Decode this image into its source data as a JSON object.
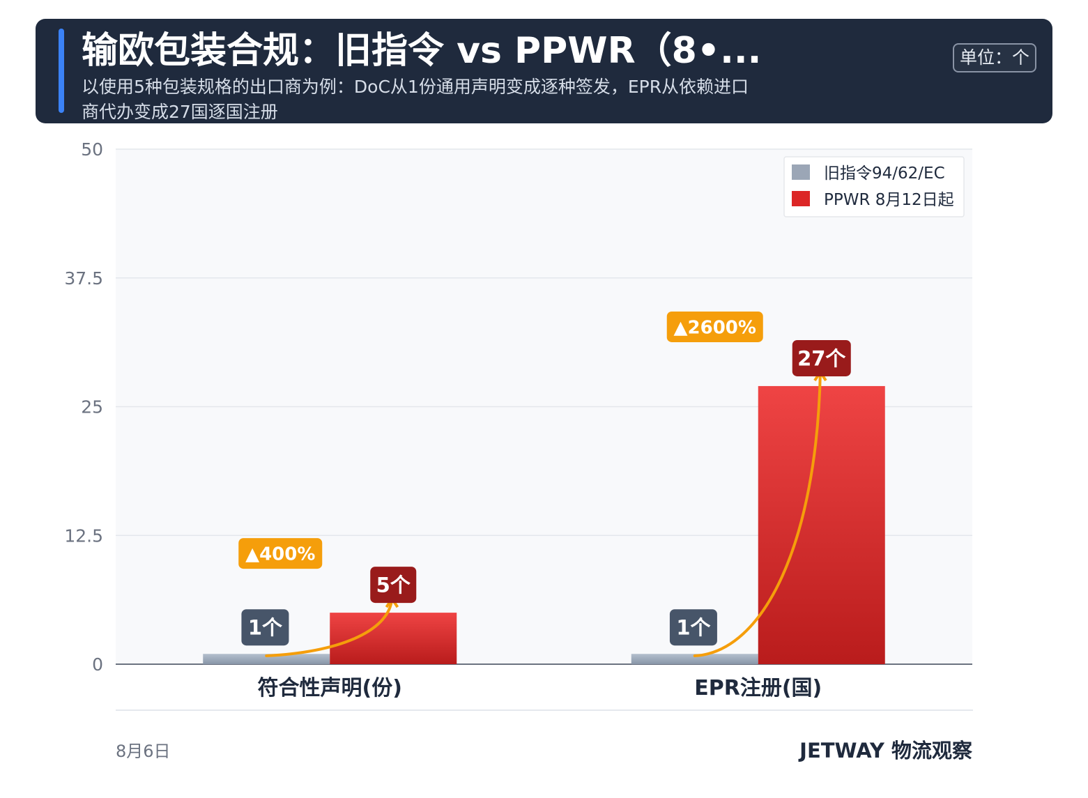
{
  "header": {
    "title": "输欧包装合规：旧指令 vs PPWR（8•...",
    "subtitle": "以使用5种包装规格的出口商为例：DoC从1份通用声明变成逐种签发，EPR从依赖进口商代办变成27国逐国注册",
    "unit": "单位：个"
  },
  "chart_data": {
    "type": "bar",
    "categories": [
      "符合性声明(份)",
      "EPR注册(国)"
    ],
    "series": [
      {
        "name": "旧指令94/62/EC",
        "values": [
          1,
          1
        ],
        "color": "#94a3b8",
        "value_labels": [
          "1个",
          "1个"
        ]
      },
      {
        "name": "PPWR 8月12日起",
        "values": [
          5,
          27
        ],
        "color": "#dc2626",
        "value_labels": [
          "5个",
          "27个"
        ]
      }
    ],
    "change_labels": [
      "▲400%",
      "▲2600%"
    ],
    "ylim": [
      0,
      50
    ],
    "yticks": [
      0,
      12.5,
      25,
      37.5,
      50
    ],
    "ytick_labels": [
      "0",
      "12.5",
      "25",
      "37.5",
      "50"
    ],
    "grid": true,
    "legend_position": "top-right",
    "colors": {
      "old_label_bg": "#475569",
      "new_label_bg": "#991b1b",
      "change_bg": "#f59e0b",
      "arrow": "#f59e0b"
    }
  },
  "footer": {
    "date": "8月6日",
    "brand": "JETWAY 物流观察"
  }
}
